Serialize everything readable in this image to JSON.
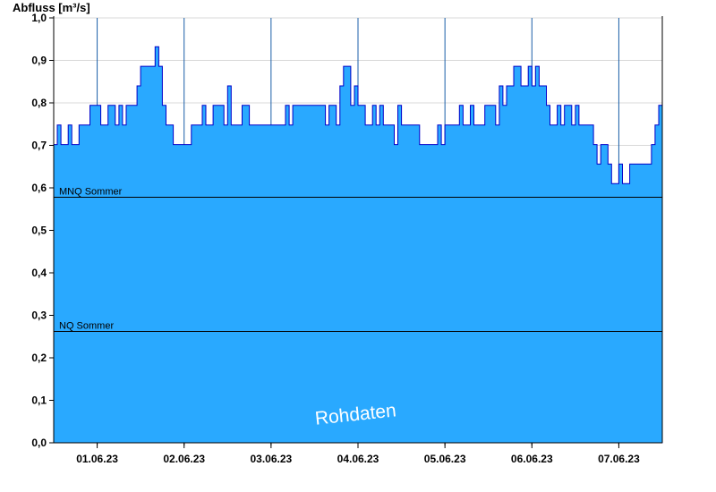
{
  "chart_data": {
    "type": "area",
    "ylabel": "Abfluss [m³/s]",
    "ylim": [
      0.0,
      1.0
    ],
    "y_ticks": [
      "0,0",
      "0,1",
      "0,2",
      "0,3",
      "0,4",
      "0,5",
      "0,6",
      "0,7",
      "0,8",
      "0,9",
      "1,0"
    ],
    "x_range_days": [
      "2023-05-31T12:00",
      "2023-06-07T12:00"
    ],
    "x_tick_labels": [
      "01.06.23",
      "02.06.23",
      "03.06.23",
      "04.06.23",
      "05.06.23",
      "06.06.23",
      "07.06.23"
    ],
    "grid": true,
    "colors": {
      "fill": "#29a9ff",
      "line": "#0000c8",
      "reference": "#000000",
      "grid": "#d8d8d8",
      "day_divider": "#1a5ea8"
    },
    "reference_lines": [
      {
        "label": "MNQ Sommer",
        "value": 0.578
      },
      {
        "label": "NQ Sommer",
        "value": 0.262
      }
    ],
    "watermark": "Rohdaten",
    "series": [
      {
        "x": [
          "2023-05-31T12:00",
          "2023-05-31T18:00",
          "2023-06-01T00:00",
          "2023-06-01T04:00",
          "2023-06-01T08:00",
          "2023-06-01T12:00",
          "2023-06-01T16:00",
          "2023-06-01T20:00",
          "2023-06-02T00:00",
          "2023-06-02T06:00",
          "2023-06-02T12:00",
          "2023-06-02T18:00",
          "2023-06-03T00:00",
          "2023-06-03T06:00",
          "2023-06-03T12:00",
          "2023-06-03T18:00",
          "2023-06-03T20:00",
          "2023-06-04T00:00",
          "2023-06-04T06:00",
          "2023-06-04T12:00",
          "2023-06-04T18:00",
          "2023-06-05T00:00",
          "2023-06-05T06:00",
          "2023-06-05T12:00",
          "2023-06-05T16:00",
          "2023-06-05T20:00",
          "2023-06-06T00:00",
          "2023-06-06T04:00",
          "2023-06-06T10:00",
          "2023-06-06T16:00",
          "2023-06-06T20:00",
          "2023-06-07T00:00",
          "2023-06-07T06:00",
          "2023-06-07T12:00"
        ],
        "values": [
          0.72,
          0.7,
          0.77,
          0.75,
          0.76,
          0.84,
          0.88,
          0.72,
          0.7,
          0.76,
          0.78,
          0.74,
          0.73,
          0.75,
          0.77,
          0.77,
          0.86,
          0.79,
          0.75,
          0.73,
          0.72,
          0.73,
          0.74,
          0.76,
          0.8,
          0.87,
          0.85,
          0.78,
          0.76,
          0.7,
          0.65,
          0.6,
          0.65,
          0.75
        ]
      }
    ]
  }
}
